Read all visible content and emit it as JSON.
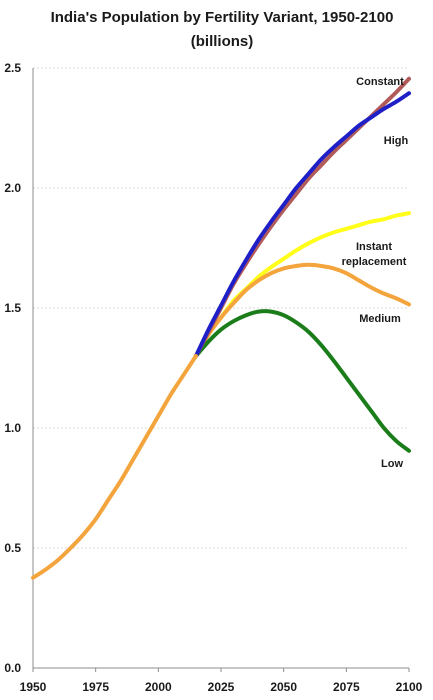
{
  "chart_data": {
    "type": "line",
    "title": "India's Population by Fertility Variant, 1950-2100",
    "subtitle": "(billions)",
    "x_ticks": [
      1950,
      1975,
      2000,
      2025,
      2050,
      2075,
      2100
    ],
    "y_ticks": [
      "0.0",
      "0.5",
      "1.0",
      "1.5",
      "2.0",
      "2.5"
    ],
    "xlim": [
      1950,
      2100
    ],
    "ylim": [
      0,
      2.5
    ],
    "grid": "horizontal-dashed",
    "history": {
      "color": "#f4a43c",
      "points": [
        [
          1950,
          0.376
        ],
        [
          1955,
          0.41
        ],
        [
          1960,
          0.45
        ],
        [
          1965,
          0.5
        ],
        [
          1970,
          0.555
        ],
        [
          1975,
          0.62
        ],
        [
          1980,
          0.7
        ],
        [
          1985,
          0.78
        ],
        [
          1990,
          0.87
        ],
        [
          1995,
          0.96
        ],
        [
          2000,
          1.05
        ],
        [
          2005,
          1.14
        ],
        [
          2010,
          1.22
        ],
        [
          2015,
          1.3
        ]
      ]
    },
    "series": [
      {
        "name": "Constant",
        "color": "#b05a5a",
        "points": [
          [
            2015,
            1.3
          ],
          [
            2020,
            1.4
          ],
          [
            2025,
            1.5
          ],
          [
            2030,
            1.6
          ],
          [
            2035,
            1.685
          ],
          [
            2040,
            1.765
          ],
          [
            2045,
            1.84
          ],
          [
            2050,
            1.91
          ],
          [
            2055,
            1.975
          ],
          [
            2060,
            2.04
          ],
          [
            2065,
            2.095
          ],
          [
            2070,
            2.15
          ],
          [
            2075,
            2.2
          ],
          [
            2080,
            2.25
          ],
          [
            2085,
            2.3
          ],
          [
            2090,
            2.35
          ],
          [
            2095,
            2.4
          ],
          [
            2100,
            2.455
          ]
        ]
      },
      {
        "name": "High",
        "color": "#1f1fc8",
        "points": [
          [
            2015,
            1.3
          ],
          [
            2020,
            1.41
          ],
          [
            2025,
            1.51
          ],
          [
            2030,
            1.61
          ],
          [
            2035,
            1.7
          ],
          [
            2040,
            1.785
          ],
          [
            2045,
            1.86
          ],
          [
            2050,
            1.93
          ],
          [
            2055,
            2.0
          ],
          [
            2060,
            2.06
          ],
          [
            2065,
            2.12
          ],
          [
            2070,
            2.17
          ],
          [
            2075,
            2.215
          ],
          [
            2080,
            2.26
          ],
          [
            2085,
            2.295
          ],
          [
            2090,
            2.33
          ],
          [
            2095,
            2.36
          ],
          [
            2100,
            2.395
          ]
        ]
      },
      {
        "name": "Instant replacement",
        "color": "#ffff1a",
        "points": [
          [
            2015,
            1.3
          ],
          [
            2020,
            1.39
          ],
          [
            2025,
            1.46
          ],
          [
            2030,
            1.53
          ],
          [
            2035,
            1.58
          ],
          [
            2040,
            1.63
          ],
          [
            2045,
            1.67
          ],
          [
            2050,
            1.705
          ],
          [
            2055,
            1.74
          ],
          [
            2060,
            1.77
          ],
          [
            2065,
            1.795
          ],
          [
            2070,
            1.815
          ],
          [
            2075,
            1.83
          ],
          [
            2080,
            1.845
          ],
          [
            2085,
            1.86
          ],
          [
            2090,
            1.87
          ],
          [
            2095,
            1.885
          ],
          [
            2100,
            1.895
          ]
        ]
      },
      {
        "name": "Medium",
        "color": "#f4a43c",
        "points": [
          [
            2015,
            1.3
          ],
          [
            2020,
            1.39
          ],
          [
            2025,
            1.46
          ],
          [
            2030,
            1.52
          ],
          [
            2035,
            1.575
          ],
          [
            2040,
            1.615
          ],
          [
            2045,
            1.645
          ],
          [
            2050,
            1.665
          ],
          [
            2055,
            1.675
          ],
          [
            2060,
            1.68
          ],
          [
            2065,
            1.675
          ],
          [
            2070,
            1.665
          ],
          [
            2075,
            1.645
          ],
          [
            2080,
            1.615
          ],
          [
            2085,
            1.585
          ],
          [
            2090,
            1.56
          ],
          [
            2095,
            1.54
          ],
          [
            2100,
            1.515
          ]
        ]
      },
      {
        "name": "Low",
        "color": "#1a7d1a",
        "points": [
          [
            2015,
            1.3
          ],
          [
            2020,
            1.36
          ],
          [
            2025,
            1.41
          ],
          [
            2030,
            1.445
          ],
          [
            2035,
            1.47
          ],
          [
            2040,
            1.485
          ],
          [
            2045,
            1.485
          ],
          [
            2050,
            1.47
          ],
          [
            2055,
            1.44
          ],
          [
            2060,
            1.4
          ],
          [
            2065,
            1.345
          ],
          [
            2070,
            1.28
          ],
          [
            2075,
            1.21
          ],
          [
            2080,
            1.14
          ],
          [
            2085,
            1.07
          ],
          [
            2090,
            1.0
          ],
          [
            2095,
            0.945
          ],
          [
            2100,
            0.905
          ]
        ]
      }
    ],
    "labels": [
      {
        "series": "Constant",
        "lines": [
          "Constant"
        ]
      },
      {
        "series": "High",
        "lines": [
          "High"
        ]
      },
      {
        "series": "Instant replacement",
        "lines": [
          "Instant",
          "replacement"
        ]
      },
      {
        "series": "Medium",
        "lines": [
          "Medium"
        ]
      },
      {
        "series": "Low",
        "lines": [
          "Low"
        ]
      }
    ]
  }
}
